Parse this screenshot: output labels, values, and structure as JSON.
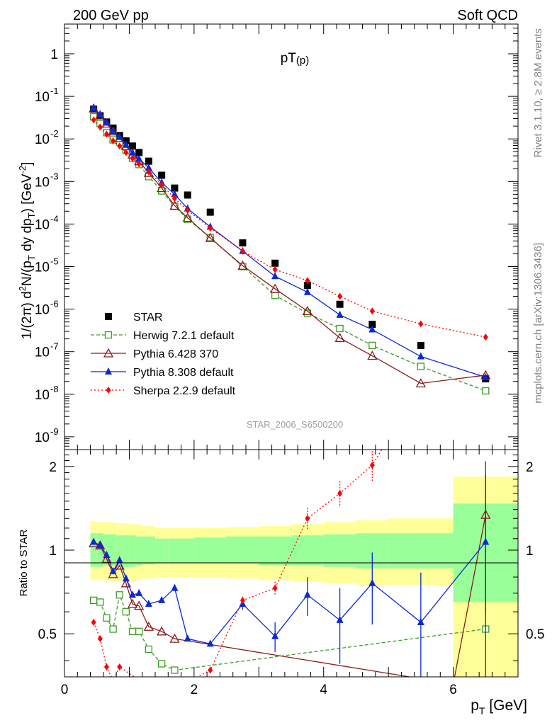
{
  "header": {
    "left": "200 GeV pp",
    "right": "Soft QCD"
  },
  "side_labels": {
    "rivet": "Rivet 3.1.10, ≥ 2.8M events",
    "mcplots": "mcplots.cern.ch [arXiv:1306.3436]"
  },
  "chart_data": [
    {
      "panel": "main",
      "type": "scatter",
      "title": "pT(p)",
      "watermark": "STAR_2006_S6500200",
      "xlabel": "p_T [GeV]",
      "ylabel": "1/(2π) d²N/(p_T dy dp_T) [GeV⁻²]",
      "xlim": [
        0,
        7.0
      ],
      "ylim": [
        5e-10,
        5
      ],
      "yscale": "log",
      "x_ticks": [
        "0",
        "2",
        "4",
        "6"
      ],
      "y_ticks": [
        "10^-9",
        "10^-8",
        "10^-7",
        "10^-6",
        "10^-5",
        "10^-4",
        "10^-3",
        "10^-2",
        "10^-1",
        "1"
      ],
      "legend_position": "bottom-left",
      "series": [
        {
          "name": "STAR",
          "style": "square-filled",
          "color": "#000000",
          "x": [
            0.45,
            0.55,
            0.65,
            0.75,
            0.85,
            0.95,
            1.05,
            1.15,
            1.3,
            1.5,
            1.7,
            1.9,
            2.25,
            2.75,
            3.25,
            3.75,
            4.25,
            4.75,
            5.5,
            6.5
          ],
          "y": [
            0.05,
            0.035,
            0.025,
            0.018,
            0.012,
            0.009,
            0.0068,
            0.0048,
            0.003,
            0.0014,
            0.0007,
            0.00048,
            0.00019,
            3.6e-05,
            1.2e-05,
            3.6e-06,
            1.3e-06,
            4.4e-07,
            1.4e-07,
            2.3e-08
          ]
        },
        {
          "name": "Herwig 7.2.1 default",
          "style": "square-open",
          "color": "#3a9d23",
          "dash": "5,3",
          "x": [
            0.45,
            0.55,
            0.65,
            0.75,
            0.85,
            0.95,
            1.05,
            1.15,
            1.3,
            1.5,
            1.7,
            1.9,
            2.25,
            2.75,
            3.25,
            3.75,
            4.25,
            4.75,
            5.5,
            6.5
          ],
          "y": [
            0.033,
            0.023,
            0.014,
            0.0095,
            0.0084,
            0.0054,
            0.0035,
            0.0025,
            0.0013,
            0.0006,
            0.00026,
            0.00013,
            4.8e-05,
            1e-05,
            2.1e-06,
            8e-07,
            3.5e-07,
            1.4e-07,
            4.5e-08,
            1.2e-08
          ]
        },
        {
          "name": "Pythia 6.428 370",
          "style": "triangle-open",
          "color": "#8b1a1a",
          "dash": "",
          "x": [
            0.45,
            0.55,
            0.65,
            0.75,
            0.85,
            0.95,
            1.05,
            1.15,
            1.3,
            1.5,
            1.7,
            1.9,
            2.25,
            2.75,
            3.25,
            3.75,
            4.25,
            4.75,
            5.5,
            6.5
          ],
          "y": [
            0.052,
            0.036,
            0.023,
            0.015,
            0.0105,
            0.0068,
            0.0043,
            0.003,
            0.0016,
            0.0007,
            0.00027,
            0.00014,
            4.7e-05,
            1.05e-05,
            3e-06,
            9e-07,
            2.1e-07,
            8e-08,
            1.8e-08,
            2.8e-08
          ]
        },
        {
          "name": "Pythia 8.308 default",
          "style": "triangle-filled",
          "color": "#0a28d6",
          "dash": "",
          "x": [
            0.45,
            0.55,
            0.65,
            0.75,
            0.85,
            0.95,
            1.05,
            1.15,
            1.3,
            1.5,
            1.7,
            1.9,
            2.25,
            2.75,
            3.25,
            3.75,
            4.25,
            4.75,
            5.5,
            6.5
          ],
          "y": [
            0.053,
            0.037,
            0.024,
            0.015,
            0.011,
            0.0072,
            0.0048,
            0.0034,
            0.0021,
            0.00094,
            0.0005,
            0.00023,
            8.6e-05,
            2.3e-05,
            5.9e-06,
            2.5e-06,
            7.3e-07,
            3.3e-07,
            7.7e-08,
            2.5e-08
          ]
        },
        {
          "name": "Sherpa 2.2.9 default",
          "style": "diamond-filled",
          "color": "#ff0000",
          "dash": "2,3",
          "x": [
            0.45,
            0.55,
            0.65,
            0.75,
            0.85,
            0.95,
            1.05,
            1.15,
            1.3,
            1.5,
            1.7,
            1.9,
            2.25,
            2.75,
            3.25,
            3.75,
            4.25,
            4.75,
            5.5,
            6.5
          ],
          "y": [
            0.028,
            0.019,
            0.013,
            0.009,
            0.0068,
            0.0048,
            0.0035,
            0.0026,
            0.0017,
            0.00085,
            0.0004,
            0.00021,
            8e-05,
            2.3e-05,
            8.5e-06,
            4.7e-06,
            2e-06,
            9e-07,
            4.5e-07,
            2.2e-07
          ]
        }
      ]
    },
    {
      "panel": "ratio",
      "type": "line",
      "ylabel": "Ratio to STAR",
      "xlabel": "p_T [GeV]",
      "xlim": [
        0,
        7.0
      ],
      "ylim": [
        0.35,
        2.3
      ],
      "y_ticks": [
        "0.5",
        "1",
        "2"
      ],
      "x_ticks": [
        "0",
        "2",
        "4",
        "6"
      ],
      "bands": {
        "green_color": "#99ff99",
        "yellow_color": "#ffff99",
        "bins": [
          {
            "x0": 0.4,
            "x1": 0.5,
            "g": [
              0.87,
              1.15
            ],
            "y": [
              0.78,
              1.27
            ]
          },
          {
            "x0": 0.5,
            "x1": 0.6,
            "g": [
              0.87,
              1.15
            ],
            "y": [
              0.78,
              1.26
            ]
          },
          {
            "x0": 0.6,
            "x1": 0.7,
            "g": [
              0.88,
              1.14
            ],
            "y": [
              0.78,
              1.26
            ]
          },
          {
            "x0": 0.7,
            "x1": 0.8,
            "g": [
              0.88,
              1.14
            ],
            "y": [
              0.77,
              1.26
            ]
          },
          {
            "x0": 0.8,
            "x1": 0.9,
            "g": [
              0.87,
              1.13
            ],
            "y": [
              0.77,
              1.25
            ]
          },
          {
            "x0": 0.9,
            "x1": 1.0,
            "g": [
              0.87,
              1.13
            ],
            "y": [
              0.77,
              1.25
            ]
          },
          {
            "x0": 1.0,
            "x1": 1.1,
            "g": [
              0.87,
              1.13
            ],
            "y": [
              0.77,
              1.24
            ]
          },
          {
            "x0": 1.1,
            "x1": 1.2,
            "g": [
              0.88,
              1.12
            ],
            "y": [
              0.78,
              1.24
            ]
          },
          {
            "x0": 1.2,
            "x1": 1.4,
            "g": [
              0.89,
              1.12
            ],
            "y": [
              0.79,
              1.22
            ]
          },
          {
            "x0": 1.4,
            "x1": 1.6,
            "g": [
              0.9,
              1.1
            ],
            "y": [
              0.8,
              1.2
            ]
          },
          {
            "x0": 1.6,
            "x1": 1.8,
            "g": [
              0.9,
              1.1
            ],
            "y": [
              0.8,
              1.2
            ]
          },
          {
            "x0": 1.8,
            "x1": 2.0,
            "g": [
              0.9,
              1.1
            ],
            "y": [
              0.8,
              1.2
            ]
          },
          {
            "x0": 2.0,
            "x1": 2.5,
            "g": [
              0.9,
              1.11
            ],
            "y": [
              0.8,
              1.2
            ]
          },
          {
            "x0": 2.5,
            "x1": 3.0,
            "g": [
              0.9,
              1.12
            ],
            "y": [
              0.79,
              1.21
            ]
          },
          {
            "x0": 3.0,
            "x1": 3.5,
            "g": [
              0.88,
              1.12
            ],
            "y": [
              0.78,
              1.22
            ]
          },
          {
            "x0": 3.5,
            "x1": 4.0,
            "g": [
              0.88,
              1.13
            ],
            "y": [
              0.77,
              1.24
            ]
          },
          {
            "x0": 4.0,
            "x1": 4.5,
            "g": [
              0.87,
              1.14
            ],
            "y": [
              0.76,
              1.26
            ]
          },
          {
            "x0": 4.5,
            "x1": 5.0,
            "g": [
              0.86,
              1.15
            ],
            "y": [
              0.75,
              1.28
            ]
          },
          {
            "x0": 5.0,
            "x1": 6.0,
            "g": [
              0.86,
              1.15
            ],
            "y": [
              0.75,
              1.3
            ]
          },
          {
            "x0": 6.0,
            "x1": 7.0,
            "g": [
              0.65,
              1.47
            ],
            "y": [
              0.2,
              1.84
            ]
          }
        ]
      },
      "series": [
        {
          "name": "Herwig 7.2.1 default",
          "style": "square-open",
          "color": "#3a9d23",
          "dash": "5,3",
          "x": [
            0.45,
            0.55,
            0.65,
            0.75,
            0.85,
            0.95,
            1.05,
            1.15,
            1.3,
            1.5,
            1.7,
            6.5
          ],
          "y": [
            0.66,
            0.65,
            0.57,
            0.52,
            0.69,
            0.6,
            0.51,
            0.51,
            0.44,
            0.39,
            0.37,
            0.52
          ],
          "err": [
            0,
            0,
            0,
            0,
            0,
            0,
            0,
            0,
            0,
            0,
            0,
            0
          ]
        },
        {
          "name": "Pythia 6.428 370",
          "style": "triangle-open",
          "color": "#8b1a1a",
          "dash": "",
          "x": [
            0.45,
            0.55,
            0.65,
            0.75,
            0.85,
            0.95,
            1.05,
            1.15,
            1.3,
            1.5,
            1.7,
            6.0,
            6.5
          ],
          "y": [
            1.06,
            1.04,
            0.93,
            0.82,
            0.88,
            0.76,
            0.64,
            0.63,
            0.53,
            0.51,
            0.48,
            0.33,
            1.34
          ],
          "err": [
            0,
            0,
            0,
            0,
            0,
            0,
            0,
            0,
            0,
            0,
            0,
            0,
            0.75
          ]
        },
        {
          "name": "Pythia 8.308 default",
          "style": "triangle-filled",
          "color": "#0a28d6",
          "dash": "",
          "x": [
            0.45,
            0.55,
            0.65,
            0.75,
            0.85,
            0.95,
            1.05,
            1.15,
            1.3,
            1.5,
            1.7,
            1.9,
            2.25,
            2.75,
            3.25,
            3.75,
            4.25,
            4.75,
            5.5,
            6.5
          ],
          "y": [
            1.07,
            1.04,
            0.96,
            0.84,
            0.92,
            0.79,
            0.69,
            0.7,
            0.64,
            0.66,
            0.73,
            0.48,
            0.46,
            0.64,
            0.49,
            0.69,
            0.56,
            0.76,
            0.55,
            1.07
          ],
          "err": [
            0,
            0,
            0,
            0,
            0,
            0,
            0,
            0,
            0,
            0,
            0,
            0,
            0,
            0.03,
            0.06,
            0.11,
            0.17,
            0.22,
            0.28,
            0.8
          ]
        },
        {
          "name": "Sherpa 2.2.9 default",
          "style": "diamond-filled",
          "color": "#ff0000",
          "dash": "2,3",
          "x": [
            0.45,
            0.55,
            0.65,
            0.75,
            0.85,
            1.5,
            2.25,
            2.75,
            3.25,
            3.75,
            4.25,
            4.75,
            5.2
          ],
          "y": [
            0.55,
            0.48,
            0.38,
            0.34,
            0.38,
            0.3,
            0.37,
            0.66,
            0.73,
            1.3,
            1.6,
            2.02,
            3.0
          ],
          "err": [
            0,
            0,
            0,
            0,
            0,
            0,
            0,
            0.02,
            0.04,
            0.12,
            0.17,
            0.25,
            0
          ]
        }
      ]
    }
  ]
}
